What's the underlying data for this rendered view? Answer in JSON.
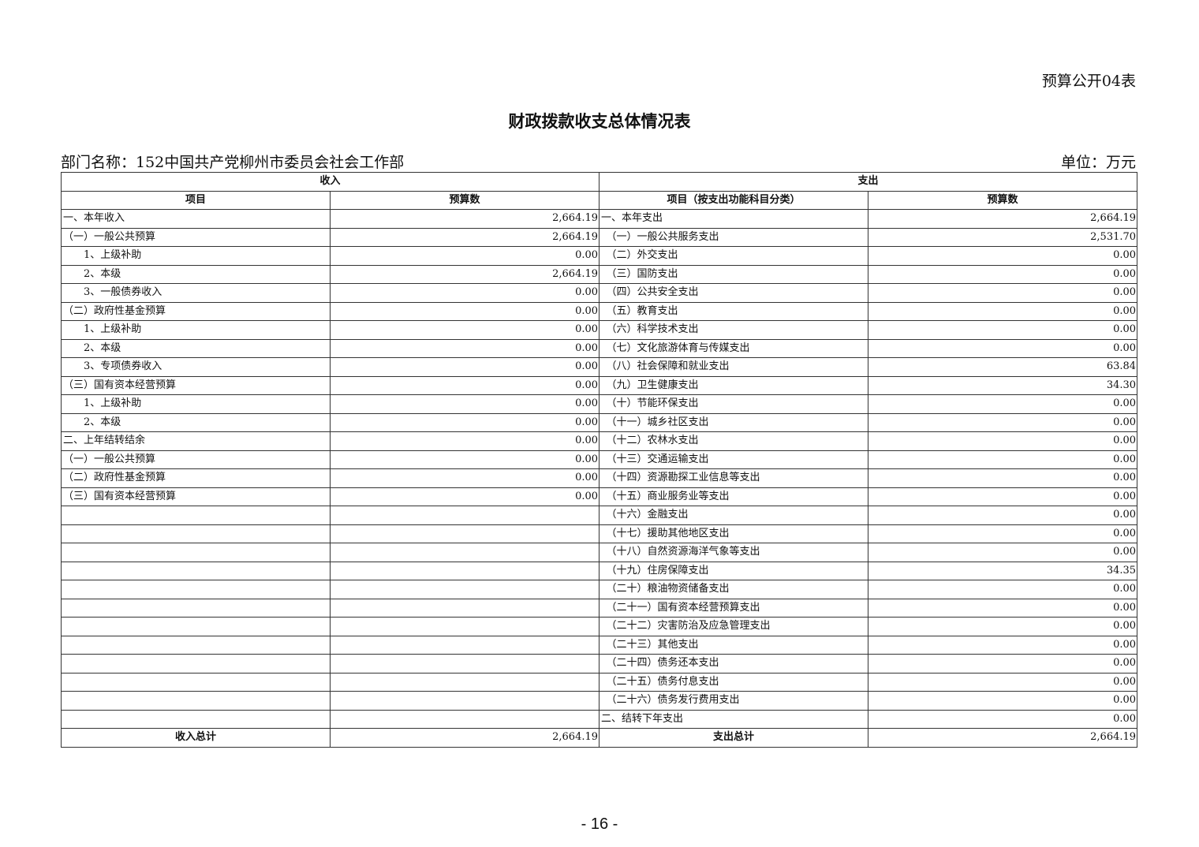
{
  "form_no": "预算公开04表",
  "title": "财政拨款收支总体情况表",
  "department": "部门名称：152中国共产党柳州市委员会社会工作部",
  "unit": "单位：万元",
  "headers": {
    "income": "收入",
    "expense": "支出",
    "income_item": "项目",
    "income_budget": "预算数",
    "expense_item": "项目（按支出功能科目分类）",
    "expense_budget": "预算数"
  },
  "rows": [
    {
      "li": "一、本年收入",
      "lv": "2,664.19",
      "ri": "一、本年支出",
      "rv": "2,664.19"
    },
    {
      "li": "（一）一般公共预算",
      "lv": "2,664.19",
      "ri": "　（一）一般公共服务支出",
      "rv": "2,531.70"
    },
    {
      "li": "　　1、上级补助",
      "lv": "0.00",
      "ri": "　（二）外交支出",
      "rv": "0.00"
    },
    {
      "li": "　　2、本级",
      "lv": "2,664.19",
      "ri": "　（三）国防支出",
      "rv": "0.00"
    },
    {
      "li": "　　3、一般债券收入",
      "lv": "0.00",
      "ri": "　（四）公共安全支出",
      "rv": "0.00"
    },
    {
      "li": "（二）政府性基金预算",
      "lv": "0.00",
      "ri": "　（五）教育支出",
      "rv": "0.00"
    },
    {
      "li": "　　1、上级补助",
      "lv": "0.00",
      "ri": "　（六）科学技术支出",
      "rv": "0.00"
    },
    {
      "li": "　　2、本级",
      "lv": "0.00",
      "ri": "　（七）文化旅游体育与传媒支出",
      "rv": "0.00"
    },
    {
      "li": "　　3、专项债券收入",
      "lv": "0.00",
      "ri": "　（八）社会保障和就业支出",
      "rv": "63.84"
    },
    {
      "li": "（三）国有资本经营预算",
      "lv": "0.00",
      "ri": "　（九）卫生健康支出",
      "rv": "34.30"
    },
    {
      "li": "　　1、上级补助",
      "lv": "0.00",
      "ri": "　（十）节能环保支出",
      "rv": "0.00"
    },
    {
      "li": "　　2、本级",
      "lv": "0.00",
      "ri": "　（十一）城乡社区支出",
      "rv": "0.00"
    },
    {
      "li": "二、上年结转结余",
      "lv": "0.00",
      "ri": "　（十二）农林水支出",
      "rv": "0.00"
    },
    {
      "li": "（一）一般公共预算",
      "lv": "0.00",
      "ri": "　（十三）交通运输支出",
      "rv": "0.00"
    },
    {
      "li": "（二）政府性基金预算",
      "lv": "0.00",
      "ri": "　（十四）资源勘探工业信息等支出",
      "rv": "0.00"
    },
    {
      "li": "（三）国有资本经营预算",
      "lv": "0.00",
      "ri": "　（十五）商业服务业等支出",
      "rv": "0.00"
    },
    {
      "li": "",
      "lv": "",
      "ri": "　（十六）金融支出",
      "rv": "0.00"
    },
    {
      "li": "",
      "lv": "",
      "ri": "　（十七）援助其他地区支出",
      "rv": "0.00"
    },
    {
      "li": "",
      "lv": "",
      "ri": "　（十八）自然资源海洋气象等支出",
      "rv": "0.00"
    },
    {
      "li": "",
      "lv": "",
      "ri": "　（十九）住房保障支出",
      "rv": "34.35"
    },
    {
      "li": "",
      "lv": "",
      "ri": "　（二十）粮油物资储备支出",
      "rv": "0.00"
    },
    {
      "li": "",
      "lv": "",
      "ri": "　（二十一）国有资本经营预算支出",
      "rv": "0.00"
    },
    {
      "li": "",
      "lv": "",
      "ri": "　（二十二）灾害防治及应急管理支出",
      "rv": "0.00"
    },
    {
      "li": "",
      "lv": "",
      "ri": "　（二十三）其他支出",
      "rv": "0.00"
    },
    {
      "li": "",
      "lv": "",
      "ri": "　（二十四）债务还本支出",
      "rv": "0.00"
    },
    {
      "li": "",
      "lv": "",
      "ri": "　（二十五）债务付息支出",
      "rv": "0.00"
    },
    {
      "li": "",
      "lv": "",
      "ri": "　（二十六）债务发行费用支出",
      "rv": "0.00"
    },
    {
      "li": "",
      "lv": "",
      "ri": "二、结转下年支出",
      "rv": "0.00"
    }
  ],
  "totals": {
    "income_label": "收入总计",
    "income_value": "2,664.19",
    "expense_label": "支出总计",
    "expense_value": "2,664.19"
  },
  "page_number": "- 16 -"
}
